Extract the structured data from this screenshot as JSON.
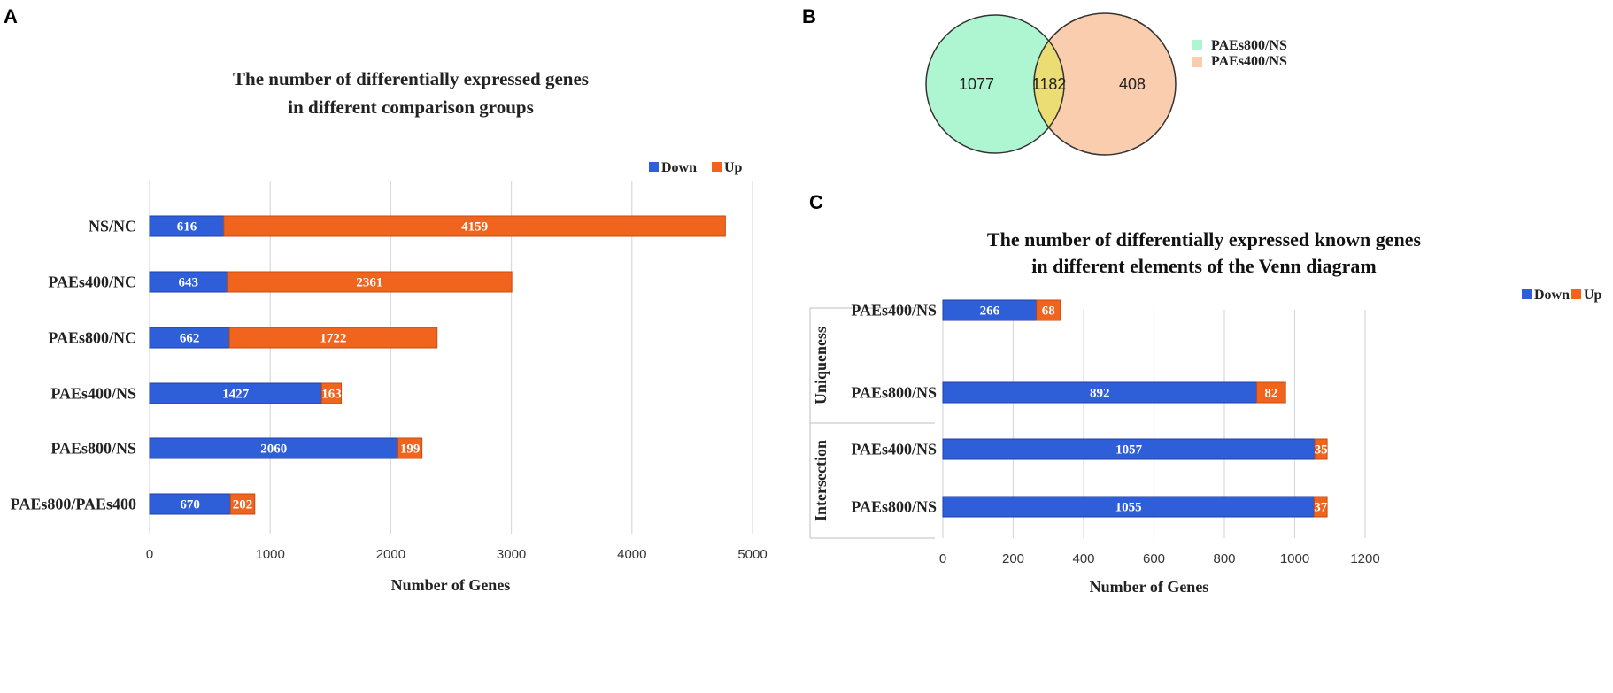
{
  "panels": {
    "a": "A",
    "b": "B",
    "c": "C"
  },
  "colors": {
    "down": "#2f5fd8",
    "down_edge": "#1f3fa8",
    "up": "#f0641e",
    "up_edge": "#c84a10",
    "venn_a": "#aef5d2",
    "venn_b": "#f9cdae",
    "venn_overlap": "#ecdc74"
  },
  "chart_data": [
    {
      "id": "A",
      "type": "bar",
      "orientation": "horizontal",
      "stacked": true,
      "title_lines": [
        "The number of differentially expressed genes",
        "in different comparison groups"
      ],
      "categories": [
        "NS/NC",
        "PAEs400/NC",
        "PAEs800/NC",
        "PAEs400/NS",
        "PAEs800/NS",
        "PAEs800/PAEs400"
      ],
      "series": [
        {
          "name": "Down",
          "values": [
            616,
            643,
            662,
            1427,
            2060,
            670
          ]
        },
        {
          "name": "Up",
          "values": [
            4159,
            2361,
            1722,
            163,
            199,
            202
          ]
        }
      ],
      "xlabel": "Number of Genes",
      "xlim": [
        0,
        5000
      ],
      "xticks": [
        "0",
        "1000",
        "2000",
        "3000",
        "4000",
        "5000"
      ],
      "grid": true,
      "legend": "top-right"
    },
    {
      "id": "B",
      "type": "venn",
      "sets": [
        "PAEs800/NS",
        "PAEs400/NS"
      ],
      "regions": {
        "only_a": "1077",
        "both": "1182",
        "only_b": "408"
      },
      "legend": "right"
    },
    {
      "id": "C",
      "type": "bar",
      "orientation": "horizontal",
      "stacked": true,
      "title_lines": [
        "The number of differentially expressed known genes",
        "in different elements of the Venn diagram"
      ],
      "groups": [
        "Uniqueness",
        "Intersection"
      ],
      "categories": [
        "PAEs400/NS",
        "PAEs800/NS",
        "PAEs400/NS",
        "PAEs800/NS"
      ],
      "series": [
        {
          "name": "Down",
          "values": [
            266,
            892,
            1057,
            1055
          ]
        },
        {
          "name": "Up",
          "values": [
            68,
            82,
            35,
            37
          ]
        }
      ],
      "xlabel": "Number of Genes",
      "xlim": [
        0,
        1200
      ],
      "xticks": [
        "0",
        "200",
        "400",
        "600",
        "800",
        "1000",
        "1200"
      ],
      "grid": true,
      "legend": "top-right"
    }
  ]
}
